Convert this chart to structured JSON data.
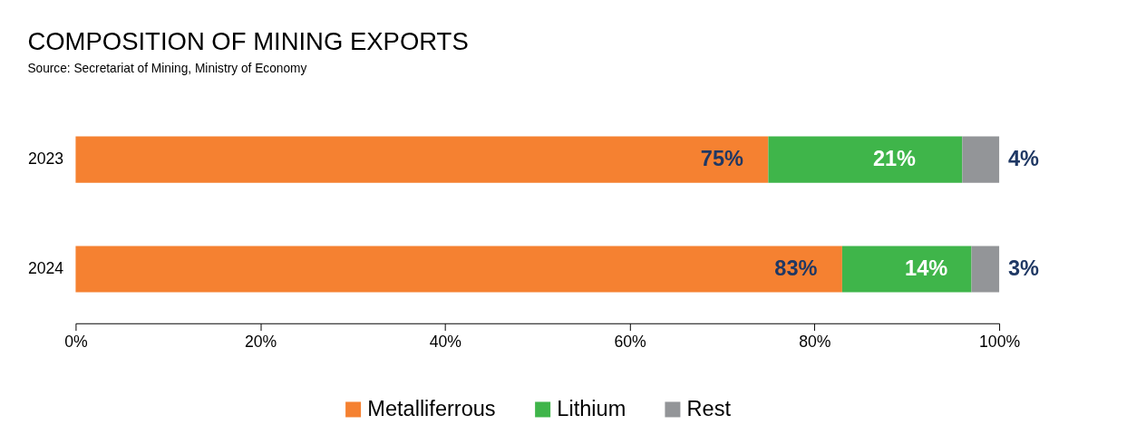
{
  "chart_data": {
    "type": "bar",
    "orientation": "horizontal",
    "stacked": true,
    "title": "COMPOSITION OF MINING EXPORTS",
    "annotations": [
      "Source: Secretariat of Mining, Ministry of Economy"
    ],
    "categories": [
      "2023",
      "2024"
    ],
    "series": [
      {
        "name": "Metalliferrous",
        "color": "#f58131",
        "values": [
          75,
          83
        ],
        "value_labels": [
          "75%",
          "83%"
        ]
      },
      {
        "name": "Lithium",
        "color": "#3fb54a",
        "values": [
          21,
          14
        ],
        "value_labels": [
          "21%",
          "14%"
        ]
      },
      {
        "name": "Rest",
        "color": "#939598",
        "values": [
          4,
          3
        ],
        "value_labels": [
          "4%",
          "3%"
        ]
      }
    ],
    "xlim": [
      0,
      100
    ],
    "xticks": [
      {
        "value": 0,
        "label": "0%"
      },
      {
        "value": 20,
        "label": "20%"
      },
      {
        "value": 40,
        "label": "40%"
      },
      {
        "value": 60,
        "label": "60%"
      },
      {
        "value": 80,
        "label": "80%"
      },
      {
        "value": 100,
        "label": "100%"
      }
    ],
    "grid": false,
    "legend": "bottom"
  }
}
